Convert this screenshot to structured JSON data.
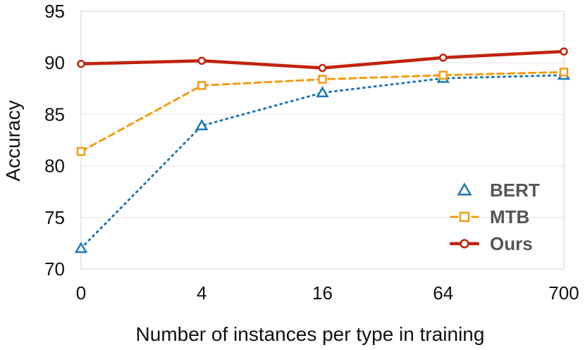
{
  "chart_data": {
    "type": "line",
    "title": "",
    "xlabel": "Number of instances per type in training",
    "ylabel": "Accuracy",
    "categories": [
      "0",
      "4",
      "16",
      "64",
      "700"
    ],
    "ylim": [
      70,
      95
    ],
    "yticks": [
      "70",
      "75",
      "80",
      "85",
      "90",
      "95"
    ],
    "grid": true,
    "legend_position": "bottom-right",
    "series": [
      {
        "name": "BERT",
        "values": [
          72.0,
          83.9,
          87.1,
          88.5,
          88.8
        ],
        "color": "#1f77b4",
        "marker": "triangle",
        "line": "dotted"
      },
      {
        "name": "MTB",
        "values": [
          81.4,
          87.8,
          88.4,
          88.8,
          89.1
        ],
        "color": "#f39c12",
        "marker": "square",
        "line": "dashed"
      },
      {
        "name": "Ours",
        "values": [
          89.9,
          90.2,
          89.5,
          90.5,
          91.1
        ],
        "color": "#c0230f",
        "marker": "circle",
        "line": "solid"
      }
    ]
  }
}
